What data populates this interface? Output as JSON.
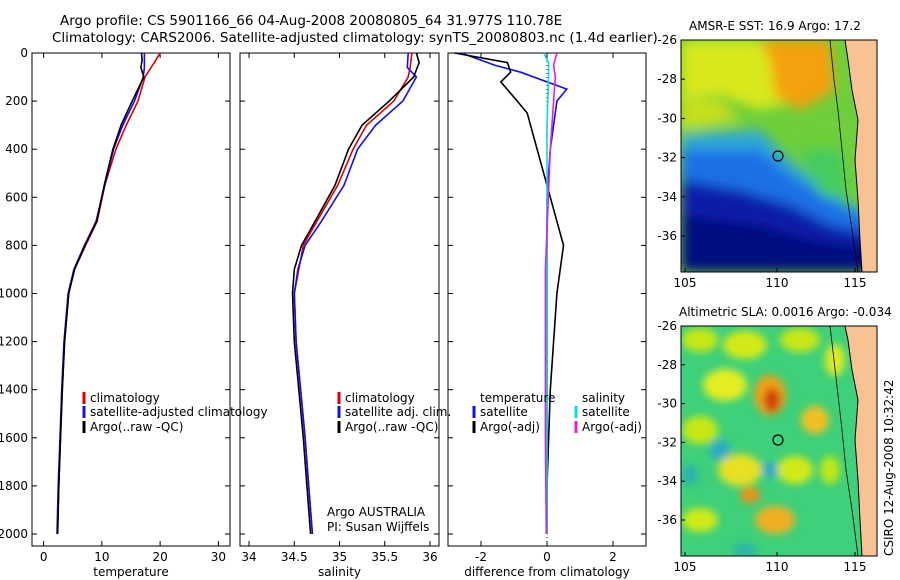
{
  "header": {
    "line1": "Argo profile: CS 5901166_66 04-Aug-2008 20080805_64 31.977S 110.78E",
    "line2": "Climatology: CARS2006. Satellite-adjusted climatology: synTS_20080803.nc (1.4d earlier)"
  },
  "credit": "CSIRO 12-Aug-2008 10:32:42",
  "colors": {
    "climatology": "#e00000",
    "satellite": "#1010ee",
    "argo": "#000000",
    "sal_satellite": "#00e0e0",
    "sal_argo": "#e020e0"
  },
  "chart_data": [
    {
      "id": "temp",
      "type": "line",
      "xlabel": "temperature",
      "ylabel": "",
      "xlim": [
        -2,
        32
      ],
      "ylim": [
        2050,
        0
      ],
      "xticks": [
        0,
        10,
        20,
        30
      ],
      "yticks": [
        0,
        200,
        400,
        600,
        800,
        1000,
        1200,
        1400,
        1600,
        1800,
        2000
      ],
      "legend": [
        "climatology",
        "satellite-adjusted climatology",
        "Argo(..raw -QC)"
      ],
      "series": [
        {
          "name": "climatology",
          "color": "#e00000",
          "points": [
            [
              20,
              0
            ],
            [
              19,
              40
            ],
            [
              17.4,
              100
            ],
            [
              16.2,
              200
            ],
            [
              14.2,
              300
            ],
            [
              12.4,
              400
            ],
            [
              10.5,
              550
            ],
            [
              9.2,
              700
            ],
            [
              7.2,
              800
            ],
            [
              5.3,
              900
            ],
            [
              4.3,
              1000
            ],
            [
              3.6,
              1200
            ],
            [
              3.2,
              1400
            ],
            [
              2.9,
              1600
            ],
            [
              2.6,
              1800
            ],
            [
              2.4,
              2000
            ]
          ]
        },
        {
          "name": "satellite-adjusted climatology",
          "color": "#1010ee",
          "points": [
            [
              17.3,
              0
            ],
            [
              17.3,
              60
            ],
            [
              17.1,
              100
            ],
            [
              15.6,
              200
            ],
            [
              13.6,
              300
            ],
            [
              12,
              400
            ],
            [
              10.5,
              550
            ],
            [
              9,
              700
            ],
            [
              7,
              800
            ],
            [
              5.2,
              900
            ],
            [
              4.2,
              1000
            ],
            [
              3.5,
              1200
            ],
            [
              3.1,
              1400
            ],
            [
              2.8,
              1600
            ],
            [
              2.5,
              1800
            ],
            [
              2.3,
              2000
            ]
          ]
        },
        {
          "name": "Argo(..raw -QC)",
          "color": "#000000",
          "points": [
            [
              16.8,
              0
            ],
            [
              16.9,
              30
            ],
            [
              16.7,
              60
            ],
            [
              17.2,
              100
            ],
            [
              15.2,
              200
            ],
            [
              13.3,
              300
            ],
            [
              11.9,
              400
            ],
            [
              10.4,
              550
            ],
            [
              9.1,
              700
            ],
            [
              7.1,
              800
            ],
            [
              5.3,
              900
            ],
            [
              4.3,
              1000
            ],
            [
              3.6,
              1200
            ],
            [
              3.2,
              1400
            ],
            [
              2.9,
              1600
            ],
            [
              2.6,
              1800
            ],
            [
              2.4,
              2000
            ]
          ]
        }
      ]
    },
    {
      "id": "sal",
      "type": "line",
      "xlabel": "salinity",
      "ylabel": "",
      "xlim": [
        33.9,
        36.1
      ],
      "ylim": [
        2050,
        0
      ],
      "xticks": [
        34,
        34.5,
        35,
        35.5,
        36
      ],
      "legend": [
        "climatology",
        "satellite adj. clim.",
        "Argo(..raw -QC)"
      ],
      "annotation": [
        "Argo AUSTRALIA",
        "PI: Susan Wijffels"
      ],
      "series": [
        {
          "name": "climatology",
          "color": "#e00000",
          "points": [
            [
              35.8,
              0
            ],
            [
              35.78,
              60
            ],
            [
              35.76,
              100
            ],
            [
              35.6,
              200
            ],
            [
              35.3,
              300
            ],
            [
              35.15,
              400
            ],
            [
              34.98,
              550
            ],
            [
              34.75,
              700
            ],
            [
              34.6,
              800
            ],
            [
              34.55,
              900
            ],
            [
              34.5,
              1000
            ],
            [
              34.52,
              1200
            ],
            [
              34.57,
              1400
            ],
            [
              34.62,
              1600
            ],
            [
              34.66,
              1800
            ],
            [
              34.7,
              2000
            ]
          ]
        },
        {
          "name": "satellite adj. clim.",
          "color": "#1010ee",
          "points": [
            [
              35.76,
              0
            ],
            [
              35.75,
              60
            ],
            [
              35.85,
              100
            ],
            [
              35.7,
              200
            ],
            [
              35.4,
              300
            ],
            [
              35.2,
              400
            ],
            [
              35.05,
              550
            ],
            [
              34.8,
              700
            ],
            [
              34.62,
              800
            ],
            [
              34.54,
              900
            ],
            [
              34.5,
              1000
            ],
            [
              34.52,
              1200
            ],
            [
              34.57,
              1400
            ],
            [
              34.62,
              1600
            ],
            [
              34.66,
              1800
            ],
            [
              34.7,
              2000
            ]
          ]
        },
        {
          "name": "Argo(..raw -QC)",
          "color": "#000000",
          "points": [
            [
              35.85,
              0
            ],
            [
              35.88,
              40
            ],
            [
              35.82,
              100
            ],
            [
              35.55,
              200
            ],
            [
              35.25,
              300
            ],
            [
              35.1,
              400
            ],
            [
              34.95,
              550
            ],
            [
              34.73,
              700
            ],
            [
              34.58,
              800
            ],
            [
              34.5,
              900
            ],
            [
              34.48,
              1000
            ],
            [
              34.5,
              1200
            ],
            [
              34.55,
              1400
            ],
            [
              34.6,
              1600
            ],
            [
              34.64,
              1800
            ],
            [
              34.68,
              2000
            ]
          ]
        }
      ]
    },
    {
      "id": "diff",
      "type": "line",
      "xlabel": "difference from climatology",
      "ylabel": "",
      "xlim": [
        -3,
        3
      ],
      "ylim": [
        2050,
        0
      ],
      "xticks": [
        -2,
        0,
        2
      ],
      "legend_headers": [
        "temperature",
        "salinity"
      ],
      "legend": [
        "satellite",
        "Argo(-adj)",
        "satellite",
        "Argo(-adj)"
      ],
      "series": [
        {
          "name": "satellite",
          "group": "temperature",
          "color": "#1010ee",
          "points": [
            [
              -2.6,
              0
            ],
            [
              -1.6,
              50
            ],
            [
              -0.8,
              80
            ],
            [
              0.6,
              150
            ],
            [
              0.3,
              200
            ],
            [
              0.1,
              400
            ],
            [
              0,
              600
            ],
            [
              0,
              1000
            ],
            [
              0,
              1400
            ],
            [
              0,
              1800
            ],
            [
              0,
              2000
            ]
          ]
        },
        {
          "name": "Argo(-adj)",
          "group": "temperature",
          "color": "#000000",
          "points": [
            [
              -2.8,
              0
            ],
            [
              -1.2,
              40
            ],
            [
              -1.1,
              80
            ],
            [
              -1.4,
              120
            ],
            [
              -0.9,
              200
            ],
            [
              -0.6,
              250
            ],
            [
              -0.5,
              300
            ],
            [
              -0.3,
              400
            ],
            [
              0.3,
              700
            ],
            [
              0.5,
              800
            ],
            [
              0.3,
              1000
            ],
            [
              0.2,
              1200
            ],
            [
              0.1,
              1400
            ],
            [
              0,
              1800
            ],
            [
              0,
              2000
            ]
          ]
        },
        {
          "name": "satellite",
          "group": "salinity",
          "color": "#00e0e0",
          "points": [
            [
              -0.1,
              0
            ],
            [
              0.05,
              40
            ],
            [
              0.05,
              100
            ],
            [
              0,
              300
            ],
            [
              0,
              600
            ],
            [
              0,
              1000
            ],
            [
              0,
              1400
            ],
            [
              0,
              1800
            ],
            [
              0,
              2000
            ]
          ]
        },
        {
          "name": "Argo(-adj)",
          "group": "salinity",
          "color": "#e020e0",
          "points": [
            [
              0.3,
              0
            ],
            [
              0.2,
              50
            ],
            [
              0.25,
              100
            ],
            [
              0.1,
              400
            ],
            [
              -0.05,
              900
            ],
            [
              -0.05,
              1200
            ],
            [
              -0.05,
              1600
            ],
            [
              -0.02,
              2000
            ]
          ]
        }
      ]
    }
  ],
  "maps": [
    {
      "title": "AMSR-E SST: 16.9 Argo: 17.2",
      "xticks": [
        "105",
        "110",
        "115"
      ],
      "yticks": [
        "-26",
        "-28",
        "-30",
        "-32",
        "-34",
        "-36"
      ]
    },
    {
      "title": "Altimetric SLA: 0.0016 Argo: -0.034",
      "xticks": [
        "105",
        "110",
        "115"
      ],
      "yticks": [
        "-26",
        "-28",
        "-30",
        "-32",
        "-34",
        "-36"
      ]
    }
  ]
}
